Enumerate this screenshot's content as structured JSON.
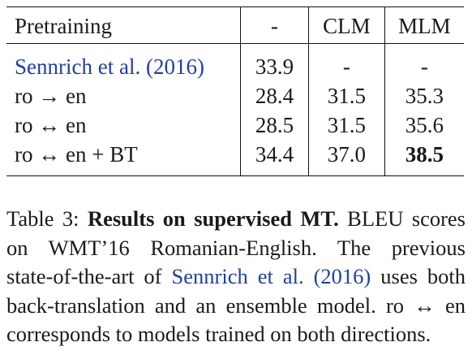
{
  "table": {
    "header": {
      "label": "Pretraining",
      "columns": [
        "-",
        "CLM",
        "MLM"
      ]
    },
    "rows": [
      {
        "label": "Sennrich et al. (2016)",
        "values": [
          "33.9",
          "-",
          "-"
        ]
      },
      {
        "label": "ro → en",
        "values": [
          "28.4",
          "31.5",
          "35.3"
        ]
      },
      {
        "label": "ro ↔ en",
        "values": [
          "28.5",
          "31.5",
          "35.6"
        ]
      },
      {
        "label": "ro ↔ en + BT",
        "values": [
          "34.4",
          "37.0",
          "38.5"
        ]
      }
    ]
  },
  "caption": {
    "prefix": "Table 3: ",
    "bold_title": "Results on supervised MT.",
    "line1_rest": " BLEU scores",
    "line2": "on WMT’16 Romanian-English.   The previous",
    "line3_pre": "state-of-the-art of ",
    "line3_cite": "Sennrich et al. (2016)",
    "line3_post": " uses both",
    "line4": "back-translation and an ensemble model. ro ↔ en",
    "line5": "corresponds to models trained on both directions."
  }
}
